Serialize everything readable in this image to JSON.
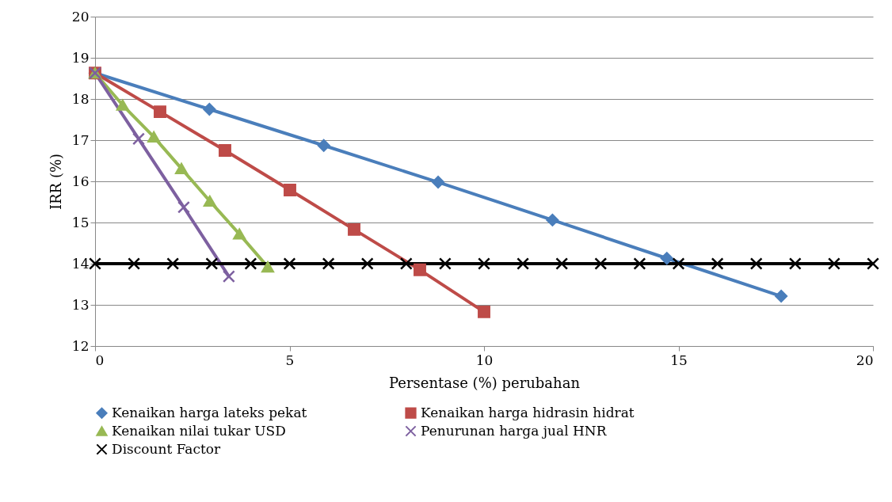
{
  "chart_data": {
    "type": "line",
    "xlabel": "Persentase (%) perubahan",
    "ylabel": "IRR (%)",
    "xlim": [
      0,
      20
    ],
    "ylim": [
      12,
      20
    ],
    "xticks": [
      0,
      5,
      10,
      15,
      20
    ],
    "yticks": [
      12,
      13,
      14,
      15,
      16,
      17,
      18,
      19,
      20
    ],
    "grid": "y",
    "legend": "bottom",
    "series": [
      {
        "name": "Kenaikan harga lateks pekat",
        "color": "#4a7ebb",
        "marker": "diamond",
        "x": [
          0,
          2.94,
          5.88,
          8.82,
          11.76,
          14.7,
          17.64
        ],
        "values": [
          18.63,
          17.75,
          16.87,
          15.98,
          15.06,
          14.13,
          13.21
        ]
      },
      {
        "name": "Kenaikan harga hidrasin hidrat",
        "color": "#be4b48",
        "marker": "square",
        "x": [
          0,
          1.67,
          3.34,
          5.01,
          6.66,
          8.35,
          10
        ],
        "values": [
          18.63,
          17.69,
          16.75,
          15.79,
          14.83,
          13.85,
          12.83
        ]
      },
      {
        "name": "Kenaikan nilai tukar USD",
        "color": "#98b954",
        "marker": "triangle",
        "x": [
          0,
          0.71,
          1.51,
          2.22,
          2.95,
          3.71,
          4.44
        ],
        "values": [
          18.63,
          17.85,
          17.08,
          16.31,
          15.52,
          14.72,
          13.92
        ]
      },
      {
        "name": "Penurunan harga jual HNR",
        "color": "#7d60a0",
        "marker": "cross",
        "x": [
          0,
          1.12,
          2.28,
          3.44
        ],
        "values": [
          18.63,
          17.03,
          15.37,
          13.69
        ]
      },
      {
        "name": "Discount Factor",
        "color": "#000000",
        "marker": "cross",
        "x": [
          0,
          1,
          2,
          3,
          4,
          5,
          6,
          7,
          8,
          9,
          10,
          11,
          12,
          13,
          14,
          15,
          16,
          17,
          18,
          19,
          20
        ],
        "values": [
          14,
          14,
          14,
          14,
          14,
          14,
          14,
          14,
          14,
          14,
          14,
          14,
          14,
          14,
          14,
          14,
          14,
          14,
          14,
          14,
          14
        ]
      }
    ]
  }
}
